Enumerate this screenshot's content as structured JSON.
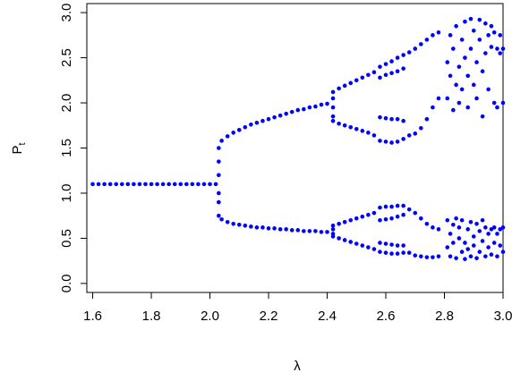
{
  "chart_data": {
    "type": "scatter",
    "x_label": "λ",
    "y_label": "P",
    "y_label_subscript": "t",
    "color": "#0000ff",
    "xlim": [
      1.58,
      3.0
    ],
    "ylim": [
      -0.1,
      3.1
    ],
    "xticks": [
      1.6,
      1.8,
      {
        "value": 2,
        "label": "2.0"
      },
      2.2,
      2.4,
      2.6,
      2.8,
      {
        "value": 3,
        "label": "3.0"
      }
    ],
    "yticks": [
      {
        "value": 0,
        "label": "0.0"
      },
      0.5,
      {
        "value": 1,
        "label": "1.0"
      },
      1.5,
      {
        "value": 2,
        "label": "2.0"
      },
      2.5,
      {
        "value": 3,
        "label": "3.0"
      }
    ],
    "x": [
      1.6,
      1.62,
      1.64,
      1.66,
      1.68,
      1.7,
      1.72,
      1.74,
      1.76,
      1.78,
      1.8,
      1.82,
      1.84,
      1.86,
      1.88,
      1.9,
      1.92,
      1.94,
      1.96,
      1.98,
      2.0,
      2.02,
      2.03,
      2.03,
      2.03,
      2.03,
      2.03,
      2.03,
      2.04,
      2.06,
      2.08,
      2.1,
      2.12,
      2.14,
      2.16,
      2.18,
      2.2,
      2.22,
      2.24,
      2.26,
      2.28,
      2.3,
      2.32,
      2.34,
      2.36,
      2.38,
      2.4,
      2.04,
      2.06,
      2.08,
      2.1,
      2.12,
      2.14,
      2.16,
      2.18,
      2.2,
      2.22,
      2.24,
      2.26,
      2.28,
      2.3,
      2.32,
      2.34,
      2.36,
      2.38,
      2.4,
      2.42,
      2.44,
      2.46,
      2.48,
      2.5,
      2.52,
      2.54,
      2.56,
      2.42,
      2.44,
      2.46,
      2.48,
      2.5,
      2.52,
      2.54,
      2.56,
      2.42,
      2.44,
      2.46,
      2.48,
      2.5,
      2.52,
      2.54,
      2.56,
      2.42,
      2.44,
      2.46,
      2.48,
      2.5,
      2.52,
      2.54,
      2.56,
      2.42,
      2.42,
      2.42,
      2.42,
      2.42,
      2.58,
      2.6,
      2.62,
      2.64,
      2.66,
      2.58,
      2.6,
      2.62,
      2.64,
      2.66,
      2.58,
      2.6,
      2.62,
      2.64,
      2.66,
      2.58,
      2.6,
      2.62,
      2.64,
      2.66,
      2.58,
      2.6,
      2.62,
      2.64,
      2.66,
      2.58,
      2.6,
      2.62,
      2.64,
      2.66,
      2.58,
      2.6,
      2.62,
      2.64,
      2.66,
      2.58,
      2.6,
      2.62,
      2.64,
      2.66,
      2.68,
      2.7,
      2.72,
      2.74,
      2.76,
      2.78,
      2.68,
      2.7,
      2.72,
      2.74,
      2.76,
      2.78,
      2.68,
      2.7,
      2.72,
      2.74,
      2.76,
      2.78,
      2.68,
      2.7,
      2.72,
      2.74,
      2.76,
      2.78,
      2.81,
      2.81,
      2.82,
      2.82,
      2.83,
      2.83,
      2.84,
      2.84,
      2.85,
      2.85,
      2.86,
      2.86,
      2.87,
      2.87,
      2.88,
      2.88,
      2.89,
      2.89,
      2.9,
      2.9,
      2.91,
      2.91,
      2.92,
      2.92,
      2.93,
      2.93,
      2.94,
      2.94,
      2.95,
      2.95,
      2.96,
      2.96,
      2.97,
      2.97,
      2.98,
      2.98,
      2.99,
      2.99,
      3.0,
      3.0,
      2.81,
      2.81,
      2.82,
      2.82,
      2.83,
      2.83,
      2.84,
      2.84,
      2.85,
      2.85,
      2.86,
      2.86,
      2.87,
      2.87,
      2.88,
      2.88,
      2.89,
      2.89,
      2.9,
      2.9,
      2.91,
      2.91,
      2.92,
      2.92,
      2.93,
      2.93,
      2.94,
      2.94,
      2.95,
      2.95,
      2.96,
      2.96,
      2.97,
      2.97,
      2.98,
      2.98,
      2.99,
      2.99,
      3.0,
      3.0
    ],
    "values": [
      1.1,
      1.1,
      1.1,
      1.1,
      1.1,
      1.1,
      1.1,
      1.1,
      1.1,
      1.1,
      1.1,
      1.1,
      1.1,
      1.1,
      1.1,
      1.1,
      1.1,
      1.1,
      1.1,
      1.1,
      1.1,
      1.1,
      0.75,
      0.9,
      1.0,
      1.2,
      1.35,
      1.5,
      1.58,
      1.63,
      1.67,
      1.7,
      1.73,
      1.76,
      1.78,
      1.8,
      1.82,
      1.84,
      1.86,
      1.88,
      1.9,
      1.92,
      1.93,
      1.95,
      1.96,
      1.98,
      1.99,
      0.71,
      0.68,
      0.66,
      0.65,
      0.64,
      0.63,
      0.62,
      0.62,
      0.61,
      0.61,
      0.6,
      0.6,
      0.59,
      0.59,
      0.58,
      0.58,
      0.58,
      0.57,
      0.57,
      2.12,
      2.16,
      2.19,
      2.22,
      2.25,
      2.28,
      2.31,
      2.34,
      1.8,
      1.77,
      1.75,
      1.73,
      1.71,
      1.69,
      1.67,
      1.64,
      0.64,
      0.66,
      0.68,
      0.7,
      0.72,
      0.74,
      0.76,
      0.78,
      0.52,
      0.5,
      0.48,
      0.46,
      0.44,
      0.42,
      0.4,
      0.38,
      1.85,
      1.95,
      2.05,
      0.6,
      0.55,
      2.4,
      2.43,
      2.46,
      2.5,
      2.53,
      2.28,
      2.31,
      2.33,
      2.35,
      2.38,
      1.84,
      1.83,
      1.82,
      1.82,
      1.8,
      1.58,
      1.57,
      1.56,
      1.57,
      1.6,
      0.84,
      0.85,
      0.85,
      0.86,
      0.86,
      0.7,
      0.71,
      0.72,
      0.74,
      0.76,
      0.45,
      0.44,
      0.43,
      0.42,
      0.42,
      0.35,
      0.34,
      0.33,
      0.33,
      0.34,
      2.56,
      2.6,
      2.65,
      2.7,
      2.75,
      2.78,
      1.64,
      1.66,
      1.72,
      1.82,
      1.95,
      2.05,
      0.82,
      0.78,
      0.72,
      0.66,
      0.62,
      0.6,
      0.34,
      0.31,
      0.3,
      0.29,
      0.29,
      0.3,
      2.05,
      2.45,
      2.3,
      2.75,
      1.92,
      2.6,
      2.2,
      2.85,
      2.4,
      2.0,
      2.7,
      2.15,
      2.9,
      2.5,
      2.3,
      1.95,
      2.93,
      2.6,
      2.2,
      2.8,
      2.45,
      2.05,
      2.92,
      2.7,
      2.35,
      1.85,
      2.88,
      2.55,
      2.15,
      2.75,
      2.62,
      2.85,
      2.0,
      2.78,
      2.6,
      1.95,
      2.75,
      2.55,
      2.0,
      2.6,
      0.7,
      0.4,
      0.55,
      0.3,
      0.65,
      0.45,
      0.72,
      0.28,
      0.5,
      0.62,
      0.35,
      0.7,
      0.45,
      0.27,
      0.6,
      0.38,
      0.68,
      0.3,
      0.52,
      0.42,
      0.66,
      0.28,
      0.58,
      0.35,
      0.7,
      0.47,
      0.3,
      0.62,
      0.4,
      0.55,
      0.6,
      0.32,
      0.45,
      0.62,
      0.3,
      0.55,
      0.6,
      0.42,
      0.35,
      0.62
    ]
  }
}
